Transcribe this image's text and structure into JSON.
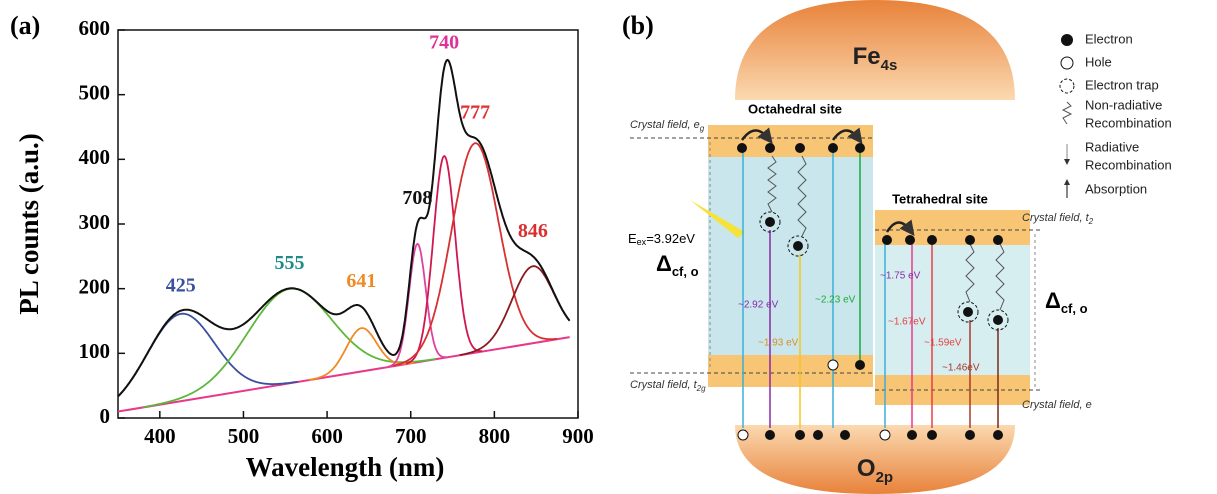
{
  "chart_data": {
    "type": "line",
    "panel_label": "(a)",
    "x_label": "Wavelength (nm)",
    "y_label": "PL counts (a.u.)",
    "xlim": [
      350,
      900
    ],
    "ylim": [
      0,
      600
    ],
    "xticks": [
      400,
      500,
      600,
      700,
      800,
      900
    ],
    "yticks": [
      0,
      100,
      200,
      300,
      400,
      500,
      600
    ],
    "baseline": {
      "x": [
        350,
        890
      ],
      "y": [
        10,
        125
      ],
      "color": "#e8388a"
    },
    "spectrum_color": "#111111",
    "peaks": [
      {
        "center": 425,
        "amplitude": 135,
        "sigma": 40,
        "color": "#3a4fa0",
        "label_color": "#3a4fa0"
      },
      {
        "center": 555,
        "amplitude": 146,
        "sigma": 50,
        "color": "#5cb83c",
        "label_color": "#1f8a8a"
      },
      {
        "center": 641,
        "amplitude": 67,
        "sigma": 18,
        "color": "#f08a24",
        "label_color": "#f08a24"
      },
      {
        "center": 708,
        "amplitude": 183,
        "sigma": 10,
        "color": "#e040a0",
        "label_color": "#111111"
      },
      {
        "center": 740,
        "amplitude": 312,
        "sigma": 13,
        "color": "#d01850",
        "label_color": "#e0309a"
      },
      {
        "center": 777,
        "amplitude": 324,
        "sigma": 28,
        "color": "#d83030",
        "label_color": "#e03030"
      },
      {
        "center": 846,
        "amplitude": 119,
        "sigma": 25,
        "color": "#8a1a20",
        "label_color": "#d83030"
      }
    ]
  },
  "diagram": {
    "panel_label": "(b)",
    "top_band": {
      "name": "Fe",
      "sub": "4s"
    },
    "bottom_band": {
      "name": "O",
      "sub": "2p"
    },
    "octahedral_title": "Octahedral site",
    "tetrahedral_title": "Tetrahedral site",
    "crystal_fields": [
      {
        "text": "Crystal field, e",
        "sub": "g"
      },
      {
        "text": "Crystal field, t",
        "sub": "2g"
      },
      {
        "text": "Crystal field, t",
        "sub": "2"
      },
      {
        "text": "Crystal field, e"
      }
    ],
    "deltas": [
      {
        "symbol": "Δ",
        "sub": "cf, o"
      },
      {
        "symbol": "Δ",
        "sub": "cf, o"
      }
    ],
    "excitation": {
      "symbol": "E",
      "sub": "ex",
      "text": "=3.92eV"
    },
    "energies": [
      "~2.92 eV",
      "~2.23 eV",
      "~1.93 eV",
      "~1.75 eV",
      "~1.67eV",
      "~1.59eV",
      "~1.46eV"
    ],
    "legend": [
      [
        "Electron"
      ],
      [
        "Hole"
      ],
      [
        "Electron trap"
      ],
      [
        "Non-radiative",
        "Recombination"
      ],
      [
        "Radiative",
        "Recombination"
      ],
      [
        "Absorption"
      ]
    ]
  }
}
